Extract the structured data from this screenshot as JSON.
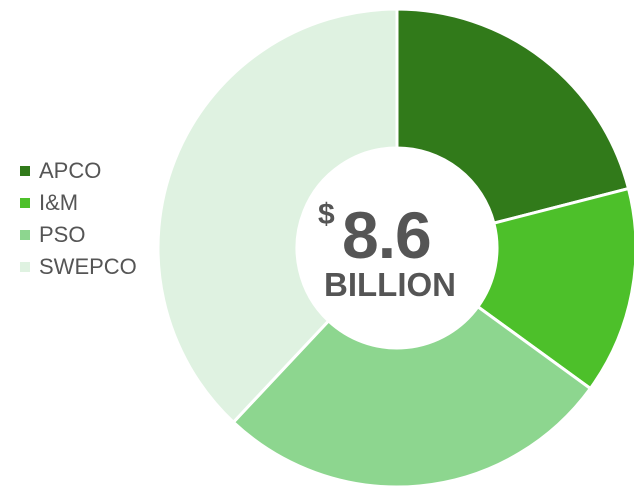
{
  "chart_data": {
    "type": "pie",
    "categories": [
      "APCO",
      "I&M",
      "PSO",
      "SWEPCO"
    ],
    "values": [
      21,
      14,
      27,
      38
    ],
    "colors": [
      "#317a1a",
      "#4dc02a",
      "#8dd68f",
      "#dff2e1"
    ],
    "center_label": {
      "currency": "$",
      "value": "8.6",
      "unit": "BILLION"
    },
    "legend_position": "left"
  }
}
